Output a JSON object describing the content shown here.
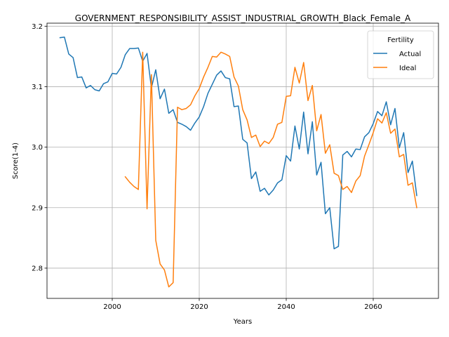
{
  "chart_data": {
    "type": "line",
    "title": "GOVERNMENT_RESPONSIBILITY_ASSIST_INDUSTRIAL_GROWTH_Black_Female_A",
    "xlabel": "Years",
    "ylabel": "Score(1-4)",
    "xlim": [
      1985,
      2075
    ],
    "ylim": [
      2.75,
      3.205
    ],
    "x_ticks": [
      2000,
      2020,
      2040,
      2060
    ],
    "y_ticks": [
      2.8,
      2.9,
      3.0,
      3.1,
      3.2
    ],
    "grid": true,
    "legend": {
      "title": "Fertility",
      "placement": "top-right"
    },
    "series": [
      {
        "name": "Actual",
        "color": "#1f77b4",
        "x": [
          1988,
          1989,
          1990,
          1991,
          1992,
          1993,
          1994,
          1995,
          1996,
          1997,
          1998,
          1999,
          2000,
          2001,
          2002,
          2003,
          2004,
          2005,
          2006,
          2007,
          2008,
          2009,
          2010,
          2011,
          2012,
          2013,
          2014,
          2015,
          2016,
          2017,
          2018,
          2019,
          2020,
          2021,
          2022,
          2023,
          2024,
          2025,
          2026,
          2027,
          2028,
          2029,
          2030,
          2031,
          2032,
          2033,
          2034,
          2035,
          2036,
          2037,
          2038,
          2039,
          2040,
          2041,
          2042,
          2043,
          2044,
          2045,
          2046,
          2047,
          2048,
          2049,
          2050,
          2051,
          2052,
          2053,
          2054,
          2055,
          2056,
          2057,
          2058,
          2059,
          2060,
          2061,
          2062,
          2063,
          2064,
          2065,
          2066,
          2067,
          2068,
          2069,
          2070
        ],
        "y": [
          3.181,
          3.182,
          3.154,
          3.148,
          3.115,
          3.116,
          3.098,
          3.102,
          3.095,
          3.093,
          3.105,
          3.108,
          3.122,
          3.121,
          3.132,
          3.153,
          3.163,
          3.163,
          3.164,
          3.142,
          3.155,
          3.098,
          3.128,
          3.08,
          3.096,
          3.056,
          3.062,
          3.041,
          3.038,
          3.034,
          3.028,
          3.04,
          3.05,
          3.067,
          3.089,
          3.104,
          3.119,
          3.126,
          3.115,
          3.113,
          3.067,
          3.068,
          3.013,
          3.007,
          2.948,
          2.959,
          2.927,
          2.932,
          2.921,
          2.929,
          2.941,
          2.946,
          2.986,
          2.977,
          3.035,
          2.997,
          3.058,
          2.989,
          3.042,
          2.954,
          2.975,
          2.89,
          2.9,
          2.832,
          2.836,
          2.987,
          2.993,
          2.984,
          2.997,
          2.996,
          3.017,
          3.024,
          3.039,
          3.059,
          3.052,
          3.075,
          3.037,
          3.064,
          2.999,
          3.024,
          2.958,
          2.977,
          2.92
        ]
      },
      {
        "name": "Ideal",
        "color": "#ff7f0e",
        "x": [
          2003,
          2004,
          2005,
          2006,
          2007,
          2008,
          2009,
          2010,
          2011,
          2012,
          2013,
          2014,
          2015,
          2016,
          2017,
          2018,
          2019,
          2020,
          2021,
          2022,
          2023,
          2024,
          2025,
          2026,
          2027,
          2028,
          2029,
          2030,
          2031,
          2032,
          2033,
          2034,
          2035,
          2036,
          2037,
          2038,
          2039,
          2040,
          2041,
          2042,
          2043,
          2044,
          2045,
          2046,
          2047,
          2048,
          2049,
          2050,
          2051,
          2052,
          2053,
          2054,
          2055,
          2056,
          2057,
          2058,
          2059,
          2060,
          2061,
          2062,
          2063,
          2064,
          2065,
          2066,
          2067,
          2068,
          2069,
          2070
        ],
        "y": [
          2.951,
          2.942,
          2.935,
          2.93,
          3.157,
          2.898,
          3.12,
          2.846,
          2.807,
          2.797,
          2.769,
          2.776,
          3.066,
          3.062,
          3.064,
          3.07,
          3.085,
          3.097,
          3.116,
          3.132,
          3.15,
          3.149,
          3.157,
          3.154,
          3.15,
          3.116,
          3.101,
          3.062,
          3.045,
          3.016,
          3.02,
          3.001,
          3.01,
          3.006,
          3.016,
          3.038,
          3.041,
          3.084,
          3.085,
          3.132,
          3.106,
          3.14,
          3.077,
          3.102,
          3.027,
          3.054,
          2.99,
          3.004,
          2.957,
          2.953,
          2.93,
          2.935,
          2.925,
          2.944,
          2.953,
          2.985,
          3.004,
          3.024,
          3.047,
          3.04,
          3.057,
          3.023,
          3.03,
          2.984,
          2.988,
          2.937,
          2.941,
          2.9
        ]
      }
    ]
  }
}
